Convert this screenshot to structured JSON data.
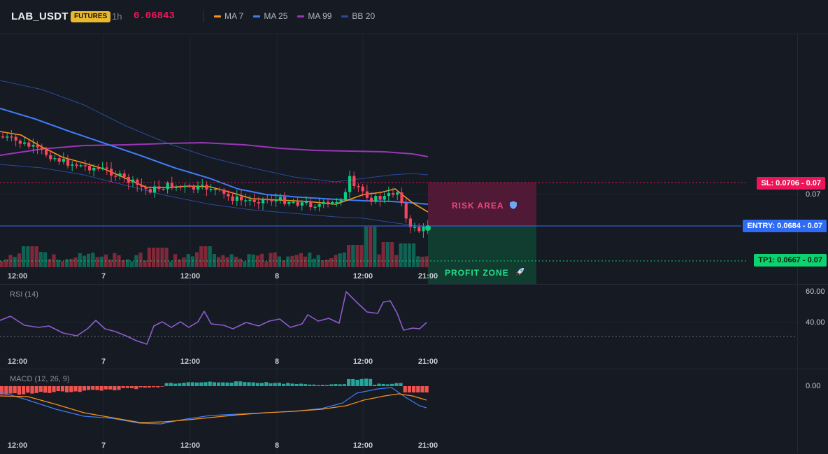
{
  "header": {
    "symbol": "LAB_USDT",
    "badge": "FUTURES",
    "timeframe": "1h",
    "last_price": "0.06843",
    "price_color": "#f0185a"
  },
  "legend": [
    {
      "label": "MA 7",
      "color": "#f7931a"
    },
    {
      "label": "MA 25",
      "color": "#3f7cf6"
    },
    {
      "label": "MA 99",
      "color": "#9b36b7"
    },
    {
      "label": "BB 20",
      "color": "#2a4a9a"
    }
  ],
  "trade": {
    "sl_label": "SL: 0.0706",
    "entry_label": "ENTRY: 0.0684",
    "tp_label": "TP1: 0.0667",
    "sl_suffix": " - 0.07",
    "entry_suffix": " - 0.07",
    "tp_suffix": " - 0.07",
    "risk_label": "RISK AREA",
    "risk_icon": "shield-icon",
    "profit_label": "PROFIT ZONE",
    "profit_icon": "rocket-icon"
  },
  "price_axis": {
    "tick": "0.07"
  },
  "x_axis": {
    "ticks": [
      "12:00",
      "7",
      "12:00",
      "8",
      "12:00",
      "21:00"
    ]
  },
  "rsi": {
    "title": "RSI (14)",
    "ticks": [
      "60.00",
      "40.00"
    ]
  },
  "macd": {
    "title": "MACD (12, 26, 9)",
    "ticks": [
      "0.00"
    ]
  },
  "colors": {
    "up": "#0ecb81",
    "down": "#f6465d",
    "ma7": "#f7931a",
    "ma25": "#3f7cf6",
    "ma99": "#9b36b7",
    "bb": "#2a4a9a",
    "rsi": "#8f5ccf",
    "macd": "#3f7cf6",
    "signal": "#f7931a"
  }
}
